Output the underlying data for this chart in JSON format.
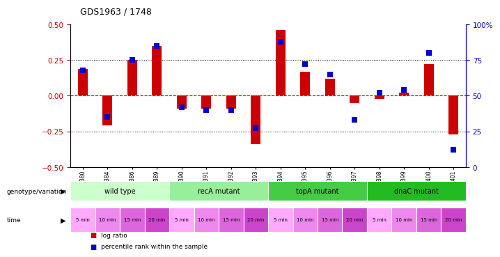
{
  "title": "GDS1963 / 1748",
  "samples": [
    "GSM99380",
    "GSM99384",
    "GSM99386",
    "GSM99389",
    "GSM99390",
    "GSM99391",
    "GSM99392",
    "GSM99393",
    "GSM99394",
    "GSM99395",
    "GSM99396",
    "GSM99397",
    "GSM99398",
    "GSM99399",
    "GSM99400",
    "GSM99401"
  ],
  "log_ratio": [
    0.19,
    -0.21,
    0.25,
    0.35,
    -0.09,
    -0.09,
    -0.09,
    -0.34,
    0.46,
    0.17,
    0.12,
    -0.05,
    -0.02,
    0.02,
    0.22,
    -0.27
  ],
  "percentile": [
    68,
    35,
    75,
    85,
    42,
    40,
    40,
    27,
    88,
    72,
    65,
    33,
    52,
    54,
    80,
    12
  ],
  "ylim_left": [
    -0.5,
    0.5
  ],
  "ylim_right": [
    0,
    100
  ],
  "bar_color": "#cc0000",
  "dot_color": "#0000cc",
  "hline_color": "#cc0000",
  "dotted_line_color": "#000000",
  "groups": [
    {
      "label": "wild type",
      "start": 0,
      "end": 4,
      "color": "#ccffcc"
    },
    {
      "label": "recA mutant",
      "start": 4,
      "end": 8,
      "color": "#99ee99"
    },
    {
      "label": "topA mutant",
      "start": 8,
      "end": 12,
      "color": "#44cc44"
    },
    {
      "label": "dnaC mutant",
      "start": 12,
      "end": 16,
      "color": "#22bb22"
    }
  ],
  "time_colors_cycle": [
    "#ffaaff",
    "#ee88ee",
    "#dd66dd",
    "#cc44cc"
  ],
  "time_labels": [
    "5 min",
    "10 min",
    "15 min",
    "20 min",
    "5 min",
    "10 min",
    "15 min",
    "20 min",
    "5 min",
    "10 min",
    "15 min",
    "20 min",
    "5 min",
    "10 min",
    "15 min",
    "20 min"
  ],
  "genotype_label": "genotype/variation",
  "time_label": "time",
  "legend_log_ratio": "log ratio",
  "legend_percentile": "percentile rank within the sample",
  "axis_left_color": "#cc0000",
  "axis_right_color": "#0000cc",
  "tick_values_left": [
    -0.5,
    -0.25,
    0.0,
    0.25,
    0.5
  ],
  "tick_values_right": [
    0,
    25,
    50,
    75,
    100
  ],
  "background_color": "#ffffff"
}
